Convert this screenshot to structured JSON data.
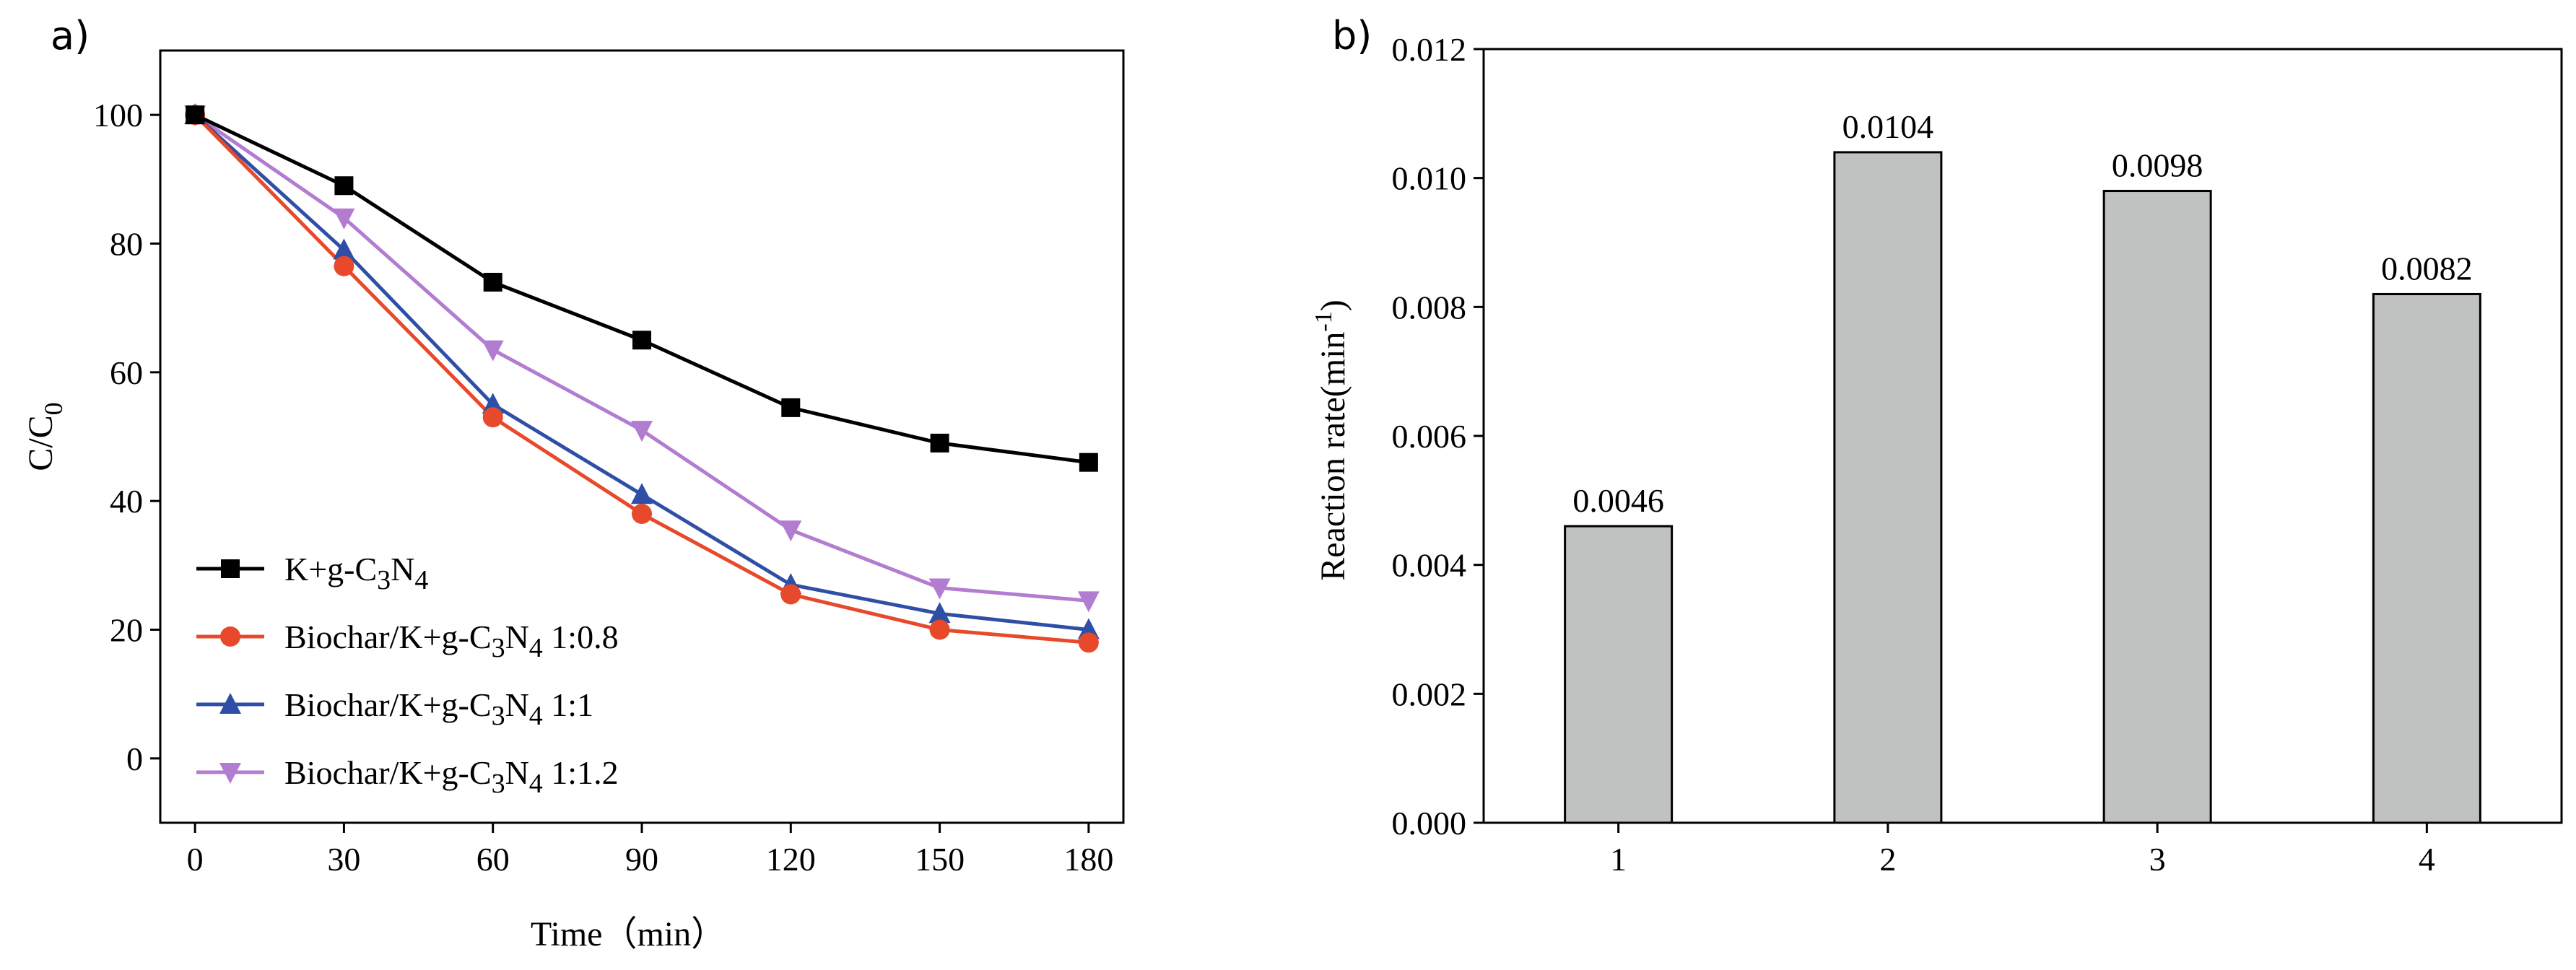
{
  "chart_data": [
    {
      "panel_label": "a)",
      "type": "line",
      "xlabel": "Time（min）",
      "ylabel": "C/C",
      "ylabel_sub": "0",
      "xlim": [
        -7,
        187
      ],
      "ylim": [
        -10,
        110
      ],
      "x_ticks": [
        "0",
        "30",
        "60",
        "90",
        "120",
        "150",
        "180"
      ],
      "y_ticks": [
        "0",
        "20",
        "40",
        "60",
        "80",
        "100"
      ],
      "x": [
        0,
        30,
        60,
        90,
        120,
        150,
        180
      ],
      "series": [
        {
          "name": "K+g-C3N4",
          "label_parts": [
            "K+g-C",
            "3",
            "N",
            "4",
            ""
          ],
          "color": "#000000",
          "marker": "square",
          "values": [
            100,
            89,
            74,
            65,
            54.5,
            49,
            46
          ]
        },
        {
          "name": "Biochar/K+g-C3N4 1:0.8",
          "label_parts": [
            "Biochar/K+g-C",
            "3",
            "N",
            "4",
            " 1:0.8"
          ],
          "color": "#e8492a",
          "marker": "circle",
          "values": [
            100,
            76.5,
            53,
            38,
            25.5,
            20,
            18
          ]
        },
        {
          "name": "Biochar/K+g-C3N4 1:1",
          "label_parts": [
            "Biochar/K+g-C",
            "3",
            "N",
            "4",
            " 1:1"
          ],
          "color": "#2f4fa6",
          "marker": "triangle-up",
          "values": [
            100,
            79,
            55,
            41,
            27,
            22.5,
            20
          ]
        },
        {
          "name": "Biochar/K+g-C3N4 1:1.2",
          "label_parts": [
            "Biochar/K+g-C",
            "3",
            "N",
            "4",
            " 1:1.2"
          ],
          "color": "#b27cd0",
          "marker": "triangle-down",
          "values": [
            100,
            84,
            63.5,
            51,
            35.5,
            26.5,
            24.5
          ]
        }
      ],
      "legend_position": "lower-left"
    },
    {
      "panel_label": "b)",
      "type": "bar",
      "xlabel": "",
      "ylabel": "Reaction rate(min",
      "ylabel_sup": "-1",
      "ylabel_end": ")",
      "categories": [
        "1",
        "2",
        "3",
        "4"
      ],
      "values": [
        0.0046,
        0.0104,
        0.0098,
        0.0082
      ],
      "value_labels": [
        "0.0046",
        "0.0104",
        "0.0098",
        "0.0082"
      ],
      "ylim": [
        0,
        0.012
      ],
      "y_ticks": [
        "0.000",
        "0.002",
        "0.004",
        "0.006",
        "0.008",
        "0.010",
        "0.012"
      ],
      "bar_color": "#c0c2c1"
    }
  ]
}
